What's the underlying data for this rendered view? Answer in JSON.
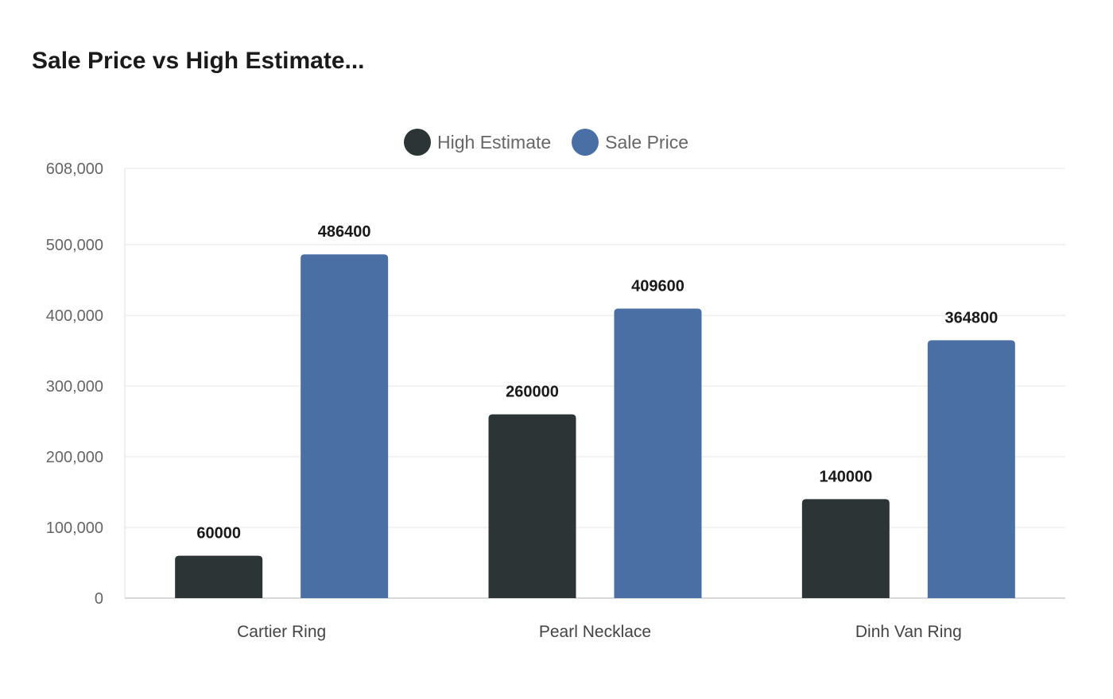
{
  "chart_data": {
    "type": "bar",
    "title": "Sale Price vs High Estimate...",
    "categories": [
      "Cartier Ring",
      "Pearl Necklace",
      "Dinh Van Ring"
    ],
    "series": [
      {
        "name": "High Estimate",
        "values": [
          60000,
          260000,
          140000
        ],
        "color": "#2d3436"
      },
      {
        "name": "Sale Price",
        "values": [
          486400,
          409600,
          364800
        ],
        "color": "#4a6fa5"
      }
    ],
    "yticks": [
      "0",
      "100,000",
      "200,000",
      "300,000",
      "400,000",
      "500,000",
      "608,000"
    ],
    "ytick_values": [
      0,
      100000,
      200000,
      300000,
      400000,
      500000,
      608000
    ],
    "ylim": [
      0,
      608000
    ],
    "grid": true,
    "legend": "top-center",
    "xlabel": "",
    "ylabel": ""
  }
}
